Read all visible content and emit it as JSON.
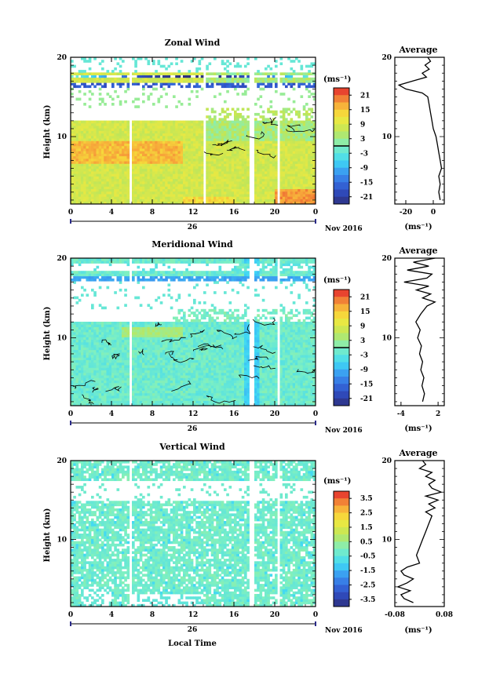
{
  "common": {
    "x_ticks": [
      "0",
      "4",
      "8",
      "12",
      "16",
      "20",
      "0"
    ],
    "date_label": "26",
    "month_label": "Nov 2016",
    "xlabel": "Local Time",
    "ylabel": "Height (km)",
    "y_ticks": [
      "20",
      "10"
    ],
    "unit_label": "(ms⁻¹)"
  },
  "chart_data": [
    {
      "type": "heatmap",
      "title": "Zonal Wind",
      "xlabel": "",
      "ylabel": "Height (km)",
      "x_range_hours": [
        0,
        24
      ],
      "y_range_km": [
        1.5,
        20
      ],
      "colorbar": {
        "labels": [
          "21",
          "15",
          "9",
          "3",
          "-3",
          "-9",
          "-15",
          "-21"
        ],
        "min": -24,
        "max": 24,
        "contour_level": 0
      },
      "gaps_hours": [
        [
          5.7,
          6.1
        ],
        [
          13.0,
          13.3
        ],
        [
          17.6,
          18.0
        ],
        [
          20.2,
          20.6
        ]
      ],
      "profile": {
        "title": "Average",
        "x_ticks": [
          "-20",
          "0"
        ],
        "x_range": [
          -28,
          8
        ],
        "xlabel": "(ms⁻¹)",
        "height": [
          2,
          3,
          4,
          5,
          6,
          7,
          8,
          9,
          10,
          11,
          12,
          13,
          14,
          15,
          15.5,
          16,
          16.5,
          17,
          17.5,
          18,
          18.5,
          19,
          19.5,
          20
        ],
        "value": [
          5,
          4,
          5,
          4,
          6,
          5,
          4,
          3,
          2,
          0,
          -1,
          -2,
          -3,
          -4,
          -8,
          -20,
          -25,
          -15,
          -5,
          -8,
          -3,
          -6,
          -2,
          -4
        ]
      }
    },
    {
      "type": "heatmap",
      "title": "Meridional Wind",
      "xlabel": "",
      "ylabel": "Height (km)",
      "x_range_hours": [
        0,
        24
      ],
      "y_range_km": [
        1.5,
        20
      ],
      "colorbar": {
        "labels": [
          "21",
          "15",
          "9",
          "3",
          "-3",
          "-9",
          "-15",
          "-21"
        ],
        "min": -24,
        "max": 24,
        "contour_level": 0
      },
      "gaps_hours": [
        [
          5.7,
          6.1
        ],
        [
          17.6,
          18.0
        ],
        [
          20.2,
          20.6
        ]
      ],
      "profile": {
        "title": "Average",
        "x_ticks": [
          "-4",
          "2"
        ],
        "x_range": [
          -5,
          3
        ],
        "xlabel": "(ms⁻¹)",
        "height": [
          2,
          3,
          4,
          5,
          6,
          7,
          8,
          9,
          10,
          11,
          12,
          13,
          14,
          14.5,
          15,
          15.5,
          16,
          16.5,
          17,
          17.5,
          18,
          18.5,
          19,
          19.5,
          20
        ],
        "value": [
          -0.5,
          -0.2,
          -0.6,
          -0.3,
          -0.8,
          -0.5,
          -1.0,
          -0.7,
          -1.3,
          -0.9,
          -1.6,
          -0.8,
          0.2,
          1.5,
          -0.5,
          0.8,
          -1.5,
          0.5,
          -3.5,
          0.2,
          1.0,
          -3.0,
          0.5,
          -2.0,
          1.5
        ]
      }
    },
    {
      "type": "heatmap",
      "title": "Vertical Wind",
      "xlabel": "Local Time",
      "ylabel": "Height (km)",
      "x_range_hours": [
        0,
        24
      ],
      "y_range_km": [
        1.5,
        20
      ],
      "colorbar": {
        "labels": [
          "3.5",
          "2.5",
          "1.5",
          "0.5",
          "-0.5",
          "-1.5",
          "-2.5",
          "-3.5"
        ],
        "min": -4,
        "max": 4
      },
      "gaps_hours": [
        [
          5.7,
          6.1
        ],
        [
          17.6,
          18.0
        ],
        [
          20.2,
          20.6
        ]
      ],
      "profile": {
        "title": "Average",
        "x_ticks": [
          "-0.08",
          "0.08"
        ],
        "x_range": [
          -0.08,
          0.08
        ],
        "xlabel": "(ms⁻¹)",
        "height": [
          2,
          2.5,
          3,
          3.5,
          4,
          4.5,
          5,
          5.5,
          6,
          6.5,
          7,
          8,
          9,
          10,
          11,
          12,
          13,
          13.5,
          14,
          14.5,
          15,
          15.5,
          16,
          16.5,
          17,
          17.5,
          18,
          18.5,
          19,
          19.5,
          20
        ],
        "value": [
          -0.02,
          -0.05,
          -0.06,
          -0.03,
          -0.07,
          -0.04,
          -0.02,
          -0.05,
          -0.06,
          -0.04,
          0.0,
          -0.01,
          0.0,
          0.01,
          0.02,
          0.03,
          0.04,
          0.02,
          0.05,
          0.03,
          0.06,
          0.02,
          0.07,
          0.04,
          0.03,
          0.05,
          0.02,
          0.04,
          0.0,
          0.02,
          0.01
        ]
      }
    }
  ]
}
